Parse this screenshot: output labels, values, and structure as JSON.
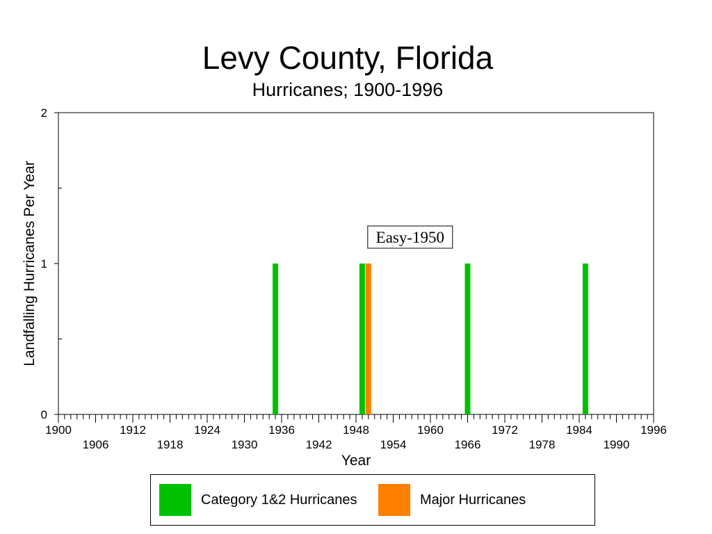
{
  "chart_data": {
    "type": "bar",
    "title": "Levy County, Florida",
    "subtitle": "Hurricanes;  1900-1996",
    "xlabel": "Year",
    "ylabel": "Landfalling Hurricanes Per Year",
    "xlim": [
      1900,
      1996
    ],
    "ylim": [
      0,
      2
    ],
    "y_ticks": [
      0,
      1,
      2
    ],
    "x_tick_labels_upper": [
      "1900",
      "1912",
      "1924",
      "1936",
      "1948",
      "1960",
      "1972",
      "1984",
      "1996"
    ],
    "x_tick_labels_lower": [
      "1906",
      "1918",
      "1930",
      "1942",
      "1954",
      "1966",
      "1978",
      "1990"
    ],
    "grid": false,
    "legend_position": "bottom",
    "series": [
      {
        "name": "Category 1&2 Hurricanes",
        "color": "#00c000",
        "points": [
          {
            "x": 1935,
            "y": 1
          },
          {
            "x": 1949,
            "y": 1
          },
          {
            "x": 1966,
            "y": 1
          },
          {
            "x": 1985,
            "y": 1
          }
        ]
      },
      {
        "name": "Major Hurricanes",
        "color": "#ff8000",
        "points": [
          {
            "x": 1950,
            "y": 1
          }
        ]
      }
    ],
    "annotations": [
      {
        "text": "Easy-1950",
        "x": 1950,
        "y": 1
      }
    ]
  }
}
